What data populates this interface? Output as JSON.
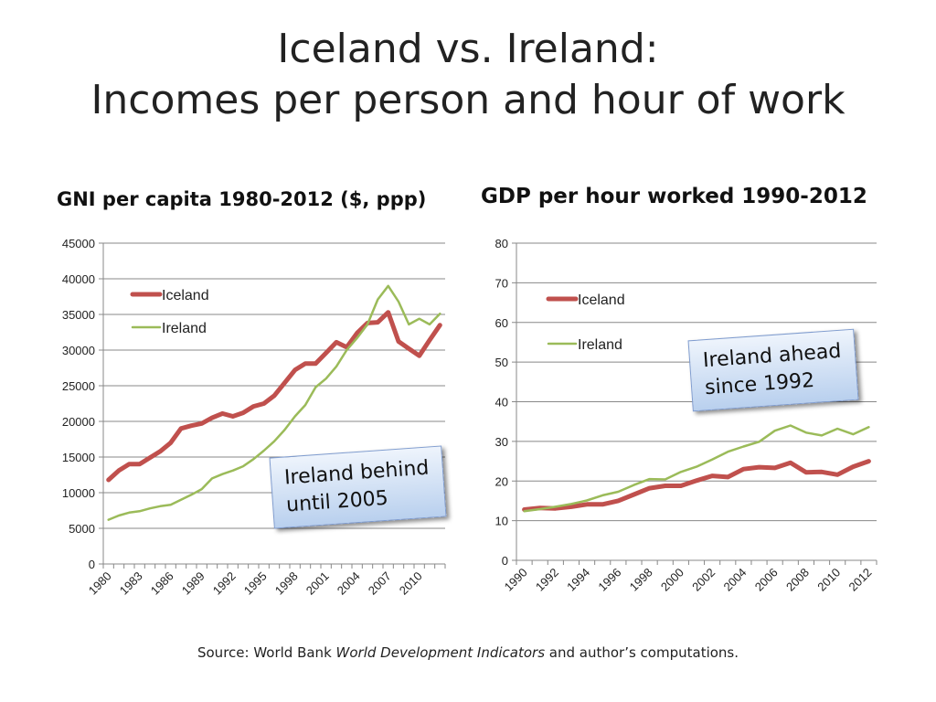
{
  "title": {
    "line1": "Iceland vs. Ireland:",
    "line2": "Incomes per person and hour of work"
  },
  "colors": {
    "iceland": "#c0504d",
    "ireland": "#9bbb59",
    "grid": "#888888",
    "callout_border": "#7f9ccf"
  },
  "callouts": {
    "gni": {
      "line1": "Ireland behind",
      "line2": "until 2005"
    },
    "gdp": {
      "line1": "Ireland ahead",
      "line2": "since 1992"
    }
  },
  "source": {
    "prefix": "Source: World Bank ",
    "italic": "World Development Indicators",
    "suffix": " and author’s computations."
  },
  "chart_data": [
    {
      "type": "line",
      "title": "GNI per capita 1980-2012 ($, ppp)",
      "xlabel": "",
      "ylabel": "",
      "x": [
        1980,
        1981,
        1982,
        1983,
        1984,
        1985,
        1986,
        1987,
        1988,
        1989,
        1990,
        1991,
        1992,
        1993,
        1994,
        1995,
        1996,
        1997,
        1998,
        1999,
        2000,
        2001,
        2002,
        2003,
        2004,
        2005,
        2006,
        2007,
        2008,
        2009,
        2010,
        2011,
        2012
      ],
      "x_tick_labels": [
        "1980",
        "1983",
        "1986",
        "1989",
        "1992",
        "1995",
        "1998",
        "2001",
        "2004",
        "2007",
        "2010"
      ],
      "ylim": [
        0,
        45000
      ],
      "y_ticks": [
        "0",
        "5000",
        "10000",
        "15000",
        "20000",
        "25000",
        "30000",
        "35000",
        "40000",
        "45000"
      ],
      "legend_position": "top-left",
      "grid": true,
      "series": [
        {
          "name": "Iceland",
          "values": [
            11800,
            13100,
            14000,
            14000,
            14900,
            15800,
            17000,
            19000,
            19400,
            19700,
            20500,
            21100,
            20700,
            21200,
            22100,
            22500,
            23600,
            25400,
            27200,
            28100,
            28100,
            29600,
            31100,
            30400,
            32400,
            33800,
            33900,
            35300,
            31200,
            30200,
            29200,
            31400,
            33500
          ]
        },
        {
          "name": "Ireland",
          "values": [
            6200,
            6800,
            7200,
            7400,
            7800,
            8100,
            8300,
            9000,
            9700,
            10500,
            12000,
            12600,
            13100,
            13700,
            14700,
            15900,
            17200,
            18800,
            20700,
            22300,
            24800,
            26000,
            27700,
            30000,
            31700,
            33600,
            37100,
            39000,
            36800,
            33600,
            34400,
            33600,
            35100
          ]
        }
      ]
    },
    {
      "type": "line",
      "title": "GDP per hour worked 1990-2012",
      "xlabel": "",
      "ylabel": "",
      "x": [
        1990,
        1991,
        1992,
        1993,
        1994,
        1995,
        1996,
        1997,
        1998,
        1999,
        2000,
        2001,
        2002,
        2003,
        2004,
        2005,
        2006,
        2007,
        2008,
        2009,
        2010,
        2011,
        2012
      ],
      "x_tick_labels": [
        "1990",
        "1992",
        "1994",
        "1996",
        "1998",
        "2000",
        "2002",
        "2004",
        "2006",
        "2008",
        "2010",
        "2012"
      ],
      "ylim": [
        0,
        80
      ],
      "y_ticks": [
        "0",
        "10",
        "20",
        "30",
        "40",
        "50",
        "60",
        "70",
        "80"
      ],
      "legend_position": "top-left",
      "grid": true,
      "series": [
        {
          "name": "Iceland",
          "values": [
            12.8,
            13.2,
            13.1,
            13.5,
            14.1,
            14.1,
            15.0,
            16.6,
            18.2,
            18.8,
            18.8,
            20.1,
            21.3,
            21.0,
            23.0,
            23.5,
            23.3,
            24.6,
            22.2,
            22.3,
            21.6,
            23.6,
            25.0
          ]
        },
        {
          "name": "Ireland",
          "values": [
            12.4,
            12.9,
            13.5,
            14.2,
            15.1,
            16.4,
            17.3,
            19.0,
            20.5,
            20.4,
            22.3,
            23.6,
            25.4,
            27.4,
            28.7,
            29.9,
            32.7,
            34.0,
            32.2,
            31.5,
            33.2,
            31.8,
            33.6
          ]
        }
      ]
    }
  ]
}
